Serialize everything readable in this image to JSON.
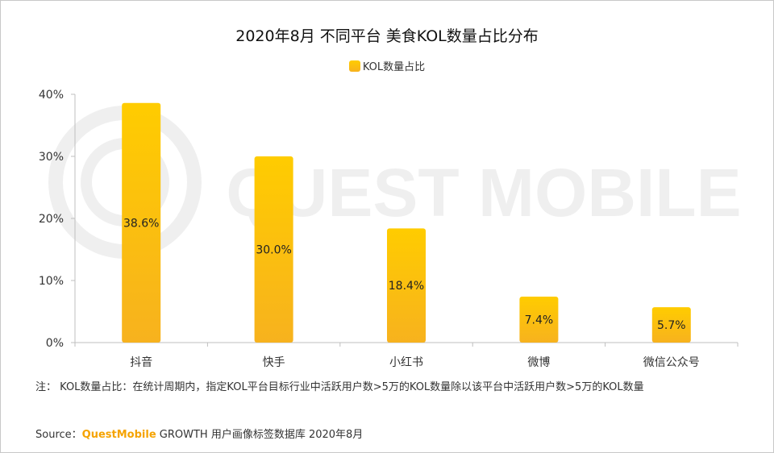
{
  "title": "2020年8月 不同平台 美食KOL数量占比分布",
  "watermark": "QUEST MOBILE",
  "colors": {
    "bar_top": "#ffcc00",
    "bar_bottom": "#f7b21e",
    "brand": "#f5a300"
  },
  "chart_data": {
    "type": "bar",
    "title": "2020年8月 不同平台 美食KOL数量占比分布",
    "categories": [
      "抖音",
      "快手",
      "小红书",
      "微博",
      "微信公众号"
    ],
    "series": [
      {
        "name": "KOL数量占比",
        "values": [
          38.6,
          30.0,
          18.4,
          7.4,
          5.7
        ]
      }
    ],
    "data_labels": [
      "38.6%",
      "30.0%",
      "18.4%",
      "7.4%",
      "5.7%"
    ],
    "ylim": [
      0,
      40
    ],
    "yticks": [
      0,
      10,
      20,
      30,
      40
    ],
    "ytick_labels": [
      "0%",
      "10%",
      "20%",
      "30%",
      "40%"
    ],
    "xlabel": "",
    "ylabel": "",
    "legend": "top-center",
    "grid": false
  },
  "note": "注：  KOL数量占比：在统计周期内，指定KOL平台目标行业中活跃用户数>5万的KOL数量除以该平台中活跃用户数>5万的KOL数量",
  "source": {
    "prefix": "Source：",
    "brand": "QuestMobile",
    "rest": " GROWTH 用户画像标签数据库 2020年8月"
  }
}
